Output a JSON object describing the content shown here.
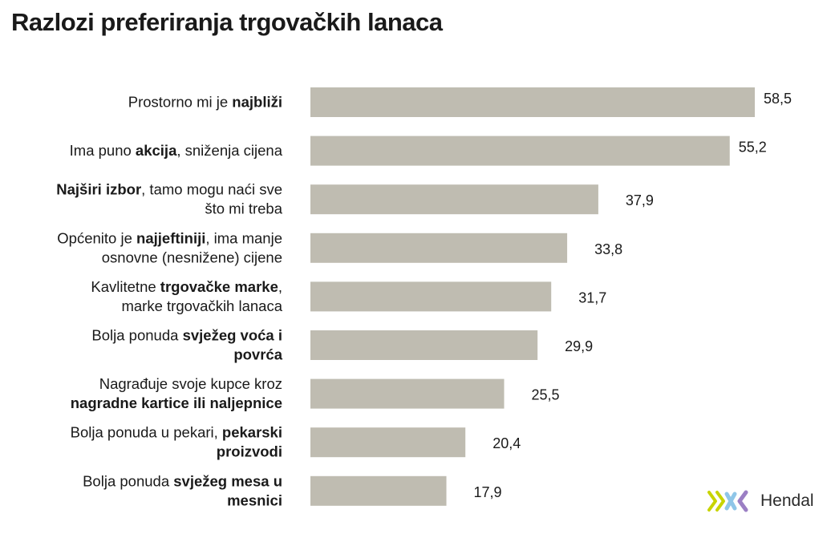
{
  "chart_data": {
    "type": "bar",
    "orientation": "horizontal",
    "title": "Razlozi preferiranja trgovačkih lanaca",
    "bar_color": "#bfbcb1",
    "categories": [
      [
        {
          "t": "Prostorno mi je ",
          "b": false
        },
        {
          "t": "najbliži",
          "b": true
        }
      ],
      [
        {
          "t": "Ima puno ",
          "b": false
        },
        {
          "t": "akcija",
          "b": true
        },
        {
          "t": ", sniženja cijena",
          "b": false
        }
      ],
      [
        {
          "t": "Najširi izbor",
          "b": true
        },
        {
          "t": ", tamo mogu naći sve",
          "b": false
        },
        {
          "t": "\n",
          "b": false
        },
        {
          "t": "što mi treba",
          "b": false
        }
      ],
      [
        {
          "t": "Općenito je ",
          "b": false
        },
        {
          "t": "najjeftiniji",
          "b": true
        },
        {
          "t": ", ima manje",
          "b": false
        },
        {
          "t": "\n",
          "b": false
        },
        {
          "t": "osnovne (nesnižene) cijene",
          "b": false
        }
      ],
      [
        {
          "t": "Kavlitetne ",
          "b": false
        },
        {
          "t": "trgovačke marke",
          "b": true
        },
        {
          "t": ",",
          "b": false
        },
        {
          "t": "\n",
          "b": false
        },
        {
          "t": "marke trgovačkih lanaca",
          "b": false
        }
      ],
      [
        {
          "t": "Bolja ponuda ",
          "b": false
        },
        {
          "t": "svježeg voća i",
          "b": true
        },
        {
          "t": "\n",
          "b": false
        },
        {
          "t": "povrća",
          "b": true
        }
      ],
      [
        {
          "t": "Nagrađuje svoje kupce kroz",
          "b": false
        },
        {
          "t": "\n",
          "b": false
        },
        {
          "t": "nagradne kartice ili naljepnice",
          "b": true
        }
      ],
      [
        {
          "t": "Bolja ponuda u pekari, ",
          "b": false
        },
        {
          "t": "pekarski",
          "b": true
        },
        {
          "t": "\n",
          "b": false
        },
        {
          "t": "proizvodi",
          "b": true
        }
      ],
      [
        {
          "t": "Bolja ponuda ",
          "b": false
        },
        {
          "t": "svježeg mesa u",
          "b": true
        },
        {
          "t": "\n",
          "b": false
        },
        {
          "t": "mesnici",
          "b": true
        }
      ]
    ],
    "values": [
      58.5,
      55.2,
      37.9,
      33.8,
      31.7,
      29.9,
      25.5,
      20.4,
      17.9
    ],
    "value_labels": [
      "58,5",
      "55,2",
      "37,9",
      "33,8",
      "31,7",
      "29,9",
      "25,5",
      "20,4",
      "17,9"
    ],
    "xlim": [
      0,
      58.5
    ],
    "grid": false,
    "legend": "none"
  },
  "logo": {
    "text": "Hendal",
    "icon": "hendal-logo-icon",
    "colors": [
      "#c8d400",
      "#8fc6e8",
      "#9b7fc4"
    ]
  }
}
